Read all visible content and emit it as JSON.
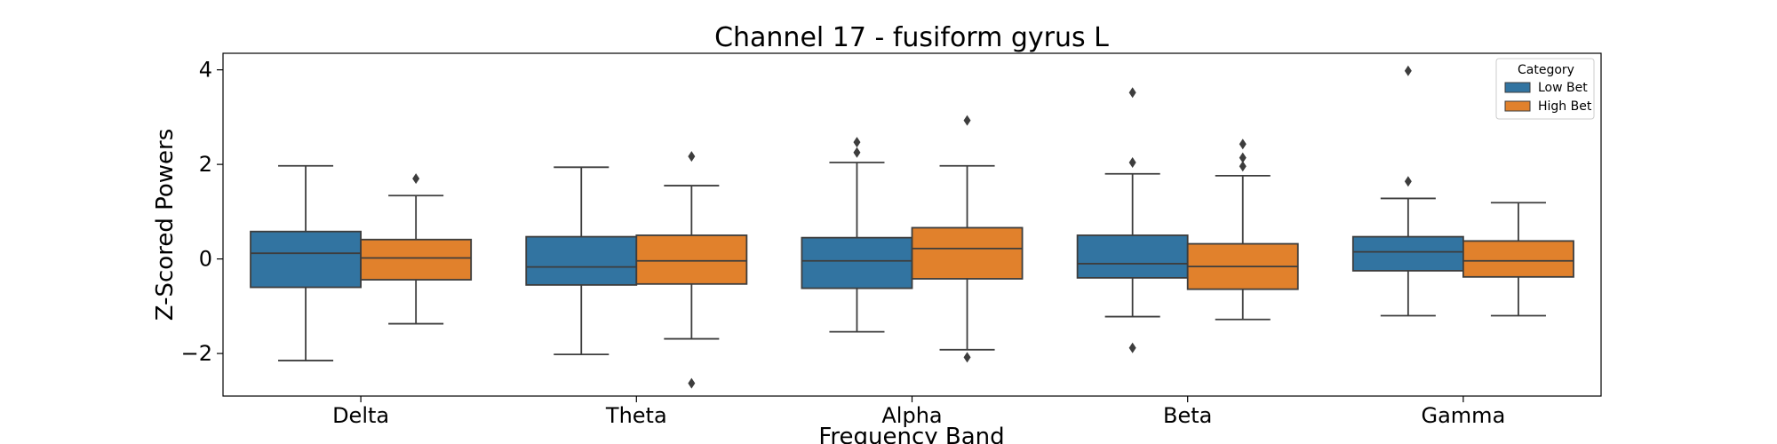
{
  "chart_data": {
    "type": "box",
    "title": "Channel 17 - fusiform gyrus L",
    "xlabel": "Frequency Band",
    "ylabel": "Z-Scored Powers",
    "categories": [
      "Delta",
      "Theta",
      "Alpha",
      "Beta",
      "Gamma"
    ],
    "ylim": [
      -2.9,
      4.35
    ],
    "yticks": [
      4,
      2,
      0,
      -2
    ],
    "ytick_labels": [
      "4",
      "2",
      "0",
      "−2"
    ],
    "grid": false,
    "legend": {
      "title": "Category",
      "placement": "top-right"
    },
    "series": [
      {
        "name": "Low Bet",
        "color": "#3274a1",
        "boxes": [
          {
            "whislo": -2.15,
            "q1": -0.6,
            "med": 0.12,
            "q3": 0.58,
            "whishi": 1.97,
            "fliers": []
          },
          {
            "whislo": -2.02,
            "q1": -0.55,
            "med": -0.17,
            "q3": 0.47,
            "whishi": 1.94,
            "fliers": []
          },
          {
            "whislo": -1.54,
            "q1": -0.62,
            "med": -0.04,
            "q3": 0.45,
            "whishi": 2.04,
            "fliers": [
              2.25,
              2.47
            ]
          },
          {
            "whislo": -1.22,
            "q1": -0.4,
            "med": -0.1,
            "q3": 0.5,
            "whishi": 1.8,
            "fliers": [
              -1.88,
              2.04,
              3.52
            ]
          },
          {
            "whislo": -1.2,
            "q1": -0.25,
            "med": 0.15,
            "q3": 0.47,
            "whishi": 1.28,
            "fliers": [
              1.64,
              3.98
            ]
          }
        ]
      },
      {
        "name": "High Bet",
        "color": "#e1812c",
        "boxes": [
          {
            "whislo": -1.37,
            "q1": -0.44,
            "med": 0.02,
            "q3": 0.41,
            "whishi": 1.34,
            "fliers": [
              1.7
            ]
          },
          {
            "whislo": -1.69,
            "q1": -0.53,
            "med": -0.04,
            "q3": 0.5,
            "whishi": 1.55,
            "fliers": [
              2.17,
              -2.63
            ]
          },
          {
            "whislo": -1.92,
            "q1": -0.42,
            "med": 0.22,
            "q3": 0.66,
            "whishi": 1.97,
            "fliers": [
              2.93,
              -2.08
            ]
          },
          {
            "whislo": -1.28,
            "q1": -0.64,
            "med": -0.16,
            "q3": 0.32,
            "whishi": 1.76,
            "fliers": [
              1.96,
              2.14,
              2.43
            ]
          },
          {
            "whislo": -1.2,
            "q1": -0.38,
            "med": -0.04,
            "q3": 0.38,
            "whishi": 1.19,
            "fliers": []
          }
        ]
      }
    ]
  }
}
